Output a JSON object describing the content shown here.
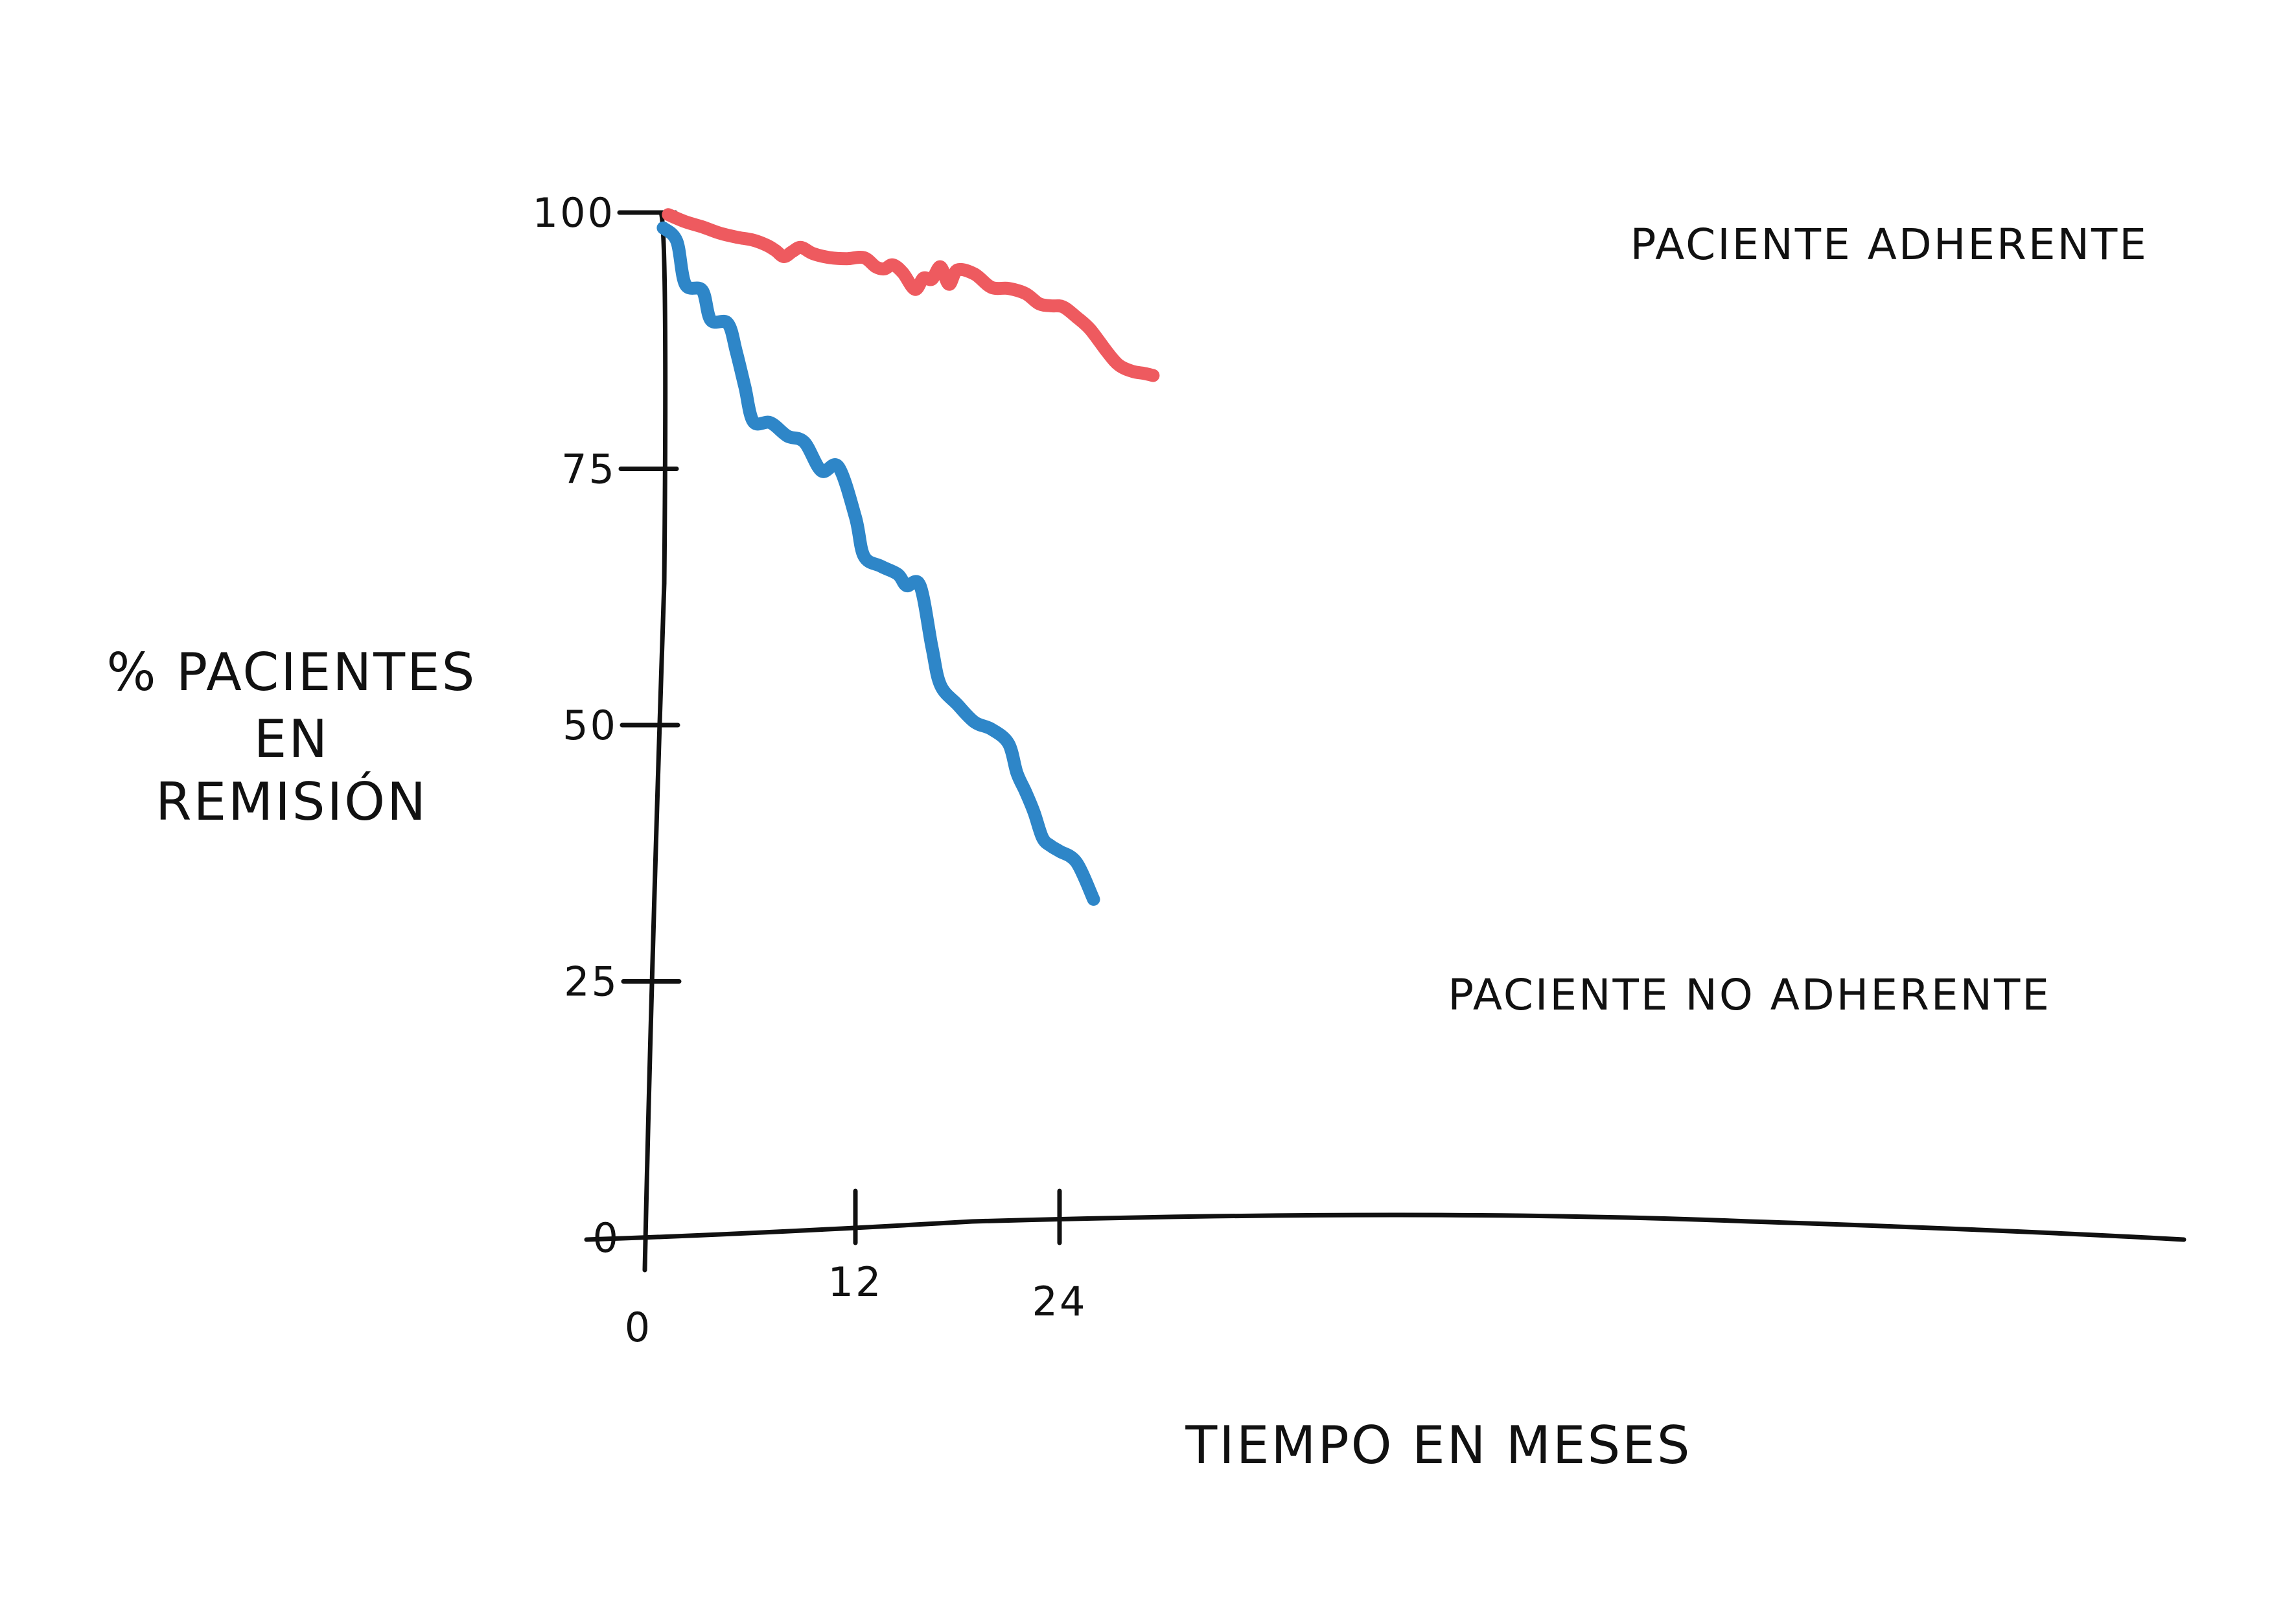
{
  "chart_data": {
    "type": "line",
    "xlabel": "TIEMPO EN MESES",
    "ylabel": [
      "% PACIENTES",
      "EN",
      "REMISIÓN"
    ],
    "x_ticks": [
      "0",
      "12",
      "24"
    ],
    "y_ticks": [
      "0",
      "25",
      "50",
      "75",
      "100"
    ],
    "xlim": [
      0,
      31
    ],
    "ylim": [
      0,
      100
    ],
    "grid": false,
    "series": [
      {
        "name": "PACIENTE ADHERENTE",
        "color": "#ee5a5f",
        "points": [
          [
            1,
            99.8
          ],
          [
            2,
            99.1
          ],
          [
            3,
            98.6
          ],
          [
            4,
            98.0
          ],
          [
            5,
            97.6
          ],
          [
            6,
            97.3
          ],
          [
            6.8,
            96.8
          ],
          [
            7.3,
            96.3
          ],
          [
            7.8,
            95.7
          ],
          [
            8.3,
            96.2
          ],
          [
            8.8,
            96.6
          ],
          [
            9.5,
            96.0
          ],
          [
            10.5,
            95.6
          ],
          [
            11.5,
            95.5
          ],
          [
            12.5,
            95.6
          ],
          [
            13.2,
            94.7
          ],
          [
            13.7,
            94.5
          ],
          [
            14.2,
            94.9
          ],
          [
            14.8,
            94.1
          ],
          [
            15.5,
            92.5
          ],
          [
            16,
            93.6
          ],
          [
            16.5,
            93.5
          ],
          [
            17,
            94.7
          ],
          [
            17.5,
            93.0
          ],
          [
            18,
            94.4
          ],
          [
            19,
            94.0
          ],
          [
            20,
            92.7
          ],
          [
            21,
            92.6
          ],
          [
            22,
            92.1
          ],
          [
            22.8,
            91.1
          ],
          [
            23.5,
            90.9
          ],
          [
            24.2,
            90.8
          ],
          [
            25,
            89.8
          ],
          [
            25.8,
            88.6
          ],
          [
            26.8,
            86.4
          ],
          [
            27.5,
            85.1
          ],
          [
            28.3,
            84.5
          ],
          [
            29,
            84.3
          ],
          [
            29.5,
            84.1
          ]
        ]
      },
      {
        "name": "PACIENTE NO ADHERENTE",
        "color": "#2e86c8",
        "points": [
          [
            0.7,
            98.5
          ],
          [
            1.5,
            97.2
          ],
          [
            2,
            93.0
          ],
          [
            3,
            92.4
          ],
          [
            3.5,
            89.5
          ],
          [
            4.5,
            89.2
          ],
          [
            5,
            86.4
          ],
          [
            5.5,
            83.0
          ],
          [
            6,
            79.6
          ],
          [
            7,
            79.5
          ],
          [
            8,
            78.2
          ],
          [
            9,
            77.6
          ],
          [
            10,
            74.8
          ],
          [
            11,
            75.2
          ],
          [
            12,
            70.3
          ],
          [
            12.5,
            66.5
          ],
          [
            13.5,
            65.5
          ],
          [
            14.5,
            64.7
          ],
          [
            15,
            63.6
          ],
          [
            15.8,
            63.6
          ],
          [
            16.5,
            57.6
          ],
          [
            17,
            53.9
          ],
          [
            18,
            52.0
          ],
          [
            19,
            50.3
          ],
          [
            20,
            49.6
          ],
          [
            21,
            48.2
          ],
          [
            21.5,
            45.3
          ],
          [
            22,
            43.5
          ],
          [
            22.5,
            41.5
          ],
          [
            23,
            39.0
          ],
          [
            23.5,
            38.2
          ],
          [
            24,
            37.7
          ],
          [
            25,
            36.6
          ],
          [
            26,
            33.0
          ]
        ]
      }
    ]
  }
}
